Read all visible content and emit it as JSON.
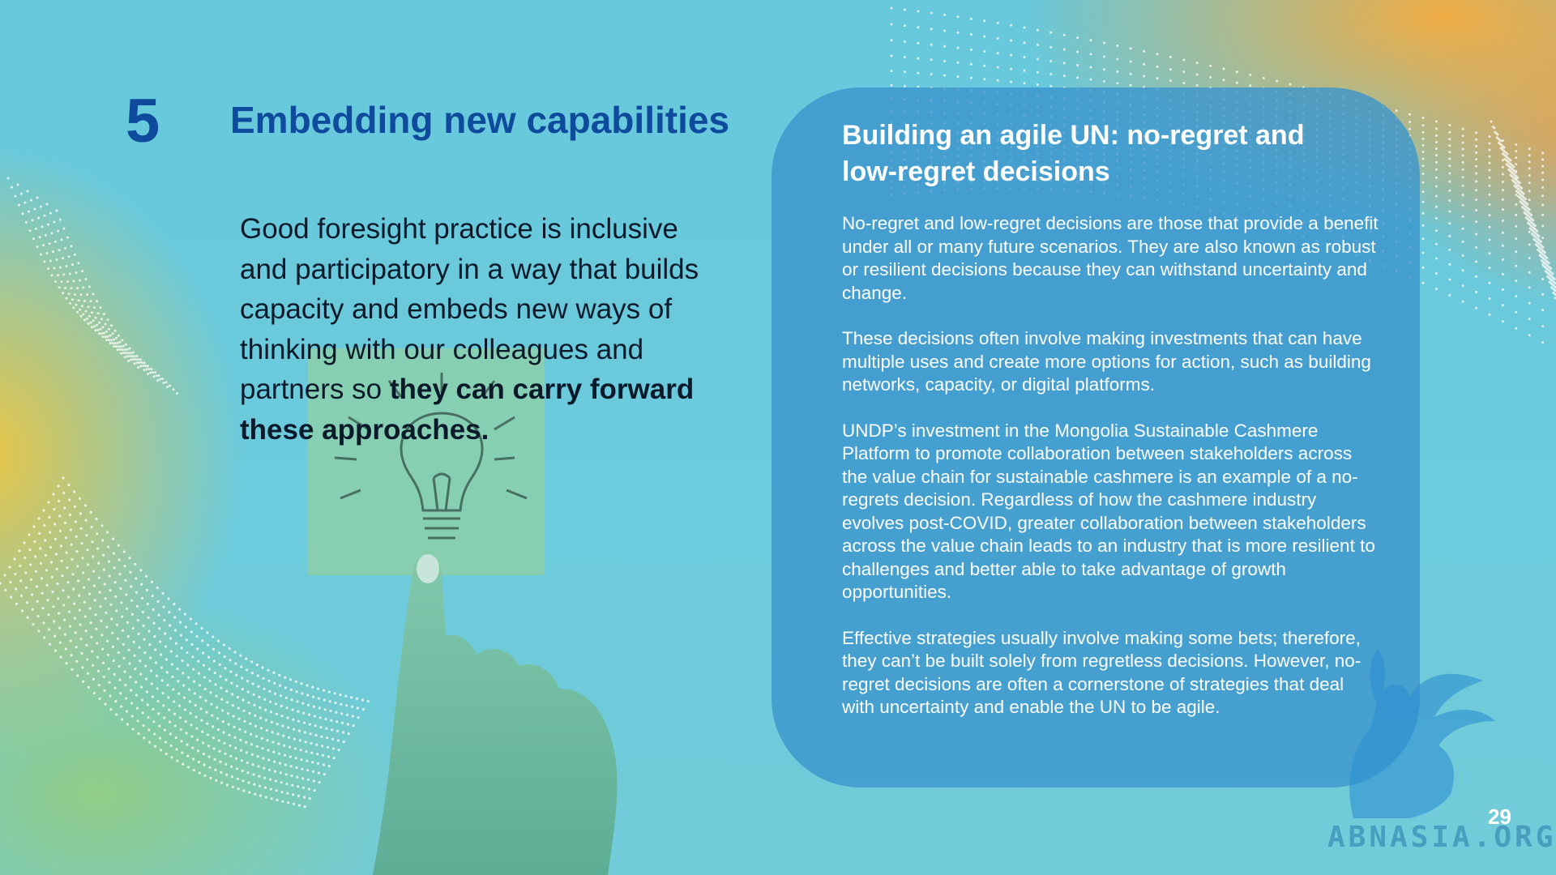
{
  "section": {
    "number": "5",
    "title": "Embedding new capabilities"
  },
  "intro": {
    "text_regular": "Good foresight practice is inclusive and participatory in a way that builds capacity and embeds new ways of thinking with our colleagues and partners so ",
    "text_bold": "they can carry forward these approaches."
  },
  "card": {
    "title": "Building an agile UN: no-regret and low-regret decisions",
    "paragraphs": [
      "No-regret and low-regret decisions are those that provide a benefit under all or many future scenarios. They are also known as robust or resilient decisions because they can withstand uncertainty and change.",
      "These decisions often involve making investments that can have multiple uses and create more options for action, such as building networks, capacity, or digital platforms.",
      "UNDP’s investment in the Mongolia Sustainable Cashmere Platform to promote collaboration between stakeholders across the value chain for sustainable cashmere is an example of a no-regrets decision. Regardless of how the cashmere industry evolves post-COVID, greater collaboration between stakeholders across the value chain leads to an industry that is more resilient to challenges and better able to take advantage of growth opportunities.",
      "Effective strategies usually involve making some bets; therefore, they can’t be built solely from regretless decisions. However, no-regret decisions are often a cornerstone of strategies that deal with uncertainty and enable the UN to be agile."
    ]
  },
  "page_number": "29",
  "watermark": "ABNASIA.ORG",
  "colors": {
    "title_blue": "#0e4b9c",
    "card_blue": "#3a94cd",
    "background_cyan": "#6cc9dc",
    "accent_orange": "#f6aa3c",
    "accent_yellow": "#f0c43c"
  },
  "icons": {
    "photo": "lightbulb-sticky-note-hand-photo",
    "watermark_logo": "griffin-logo-icon"
  }
}
